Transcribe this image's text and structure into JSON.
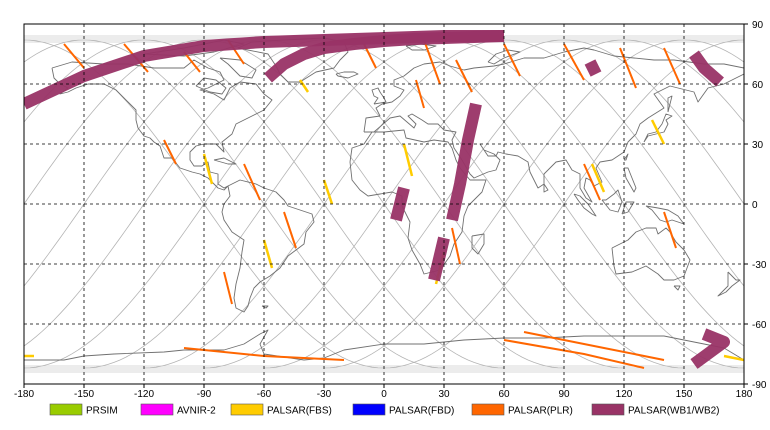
{
  "map": {
    "projection": "equirectangular",
    "lon_range": [
      -180,
      180
    ],
    "lat_range": [
      -90,
      90
    ],
    "grid": "dashed",
    "x_ticks": [
      "-180",
      "-150",
      "-120",
      "-90",
      "-60",
      "-30",
      "0",
      "30",
      "60",
      "90",
      "120",
      "150",
      "180"
    ],
    "y_ticks": [
      "90",
      "60",
      "30",
      "0",
      "-30",
      "-60",
      "-90"
    ]
  },
  "legend": [
    {
      "label": "PRSIM",
      "color": "#99cc00"
    },
    {
      "label": "AVNIR-2",
      "color": "#ff00ff"
    },
    {
      "label": "PALSAR(FBS)",
      "color": "#ffcc00"
    },
    {
      "label": "PALSAR(FBD)",
      "color": "#0000ff"
    },
    {
      "label": "PALSAR(PLR)",
      "color": "#ff6600"
    },
    {
      "label": "PALSAR(WB1/WB2)",
      "color": "#993366"
    }
  ],
  "colors": {
    "coastline": "#707070",
    "orbit": "#b4b4b4",
    "grid": "#000000",
    "background": "#ffffff"
  },
  "swaths": {
    "wb": [
      {
        "name": "wb-arc-north-pacific",
        "lon": [
          -180,
          -150,
          -120,
          -90,
          -60,
          -30,
          0,
          30,
          60
        ],
        "lat": [
          50,
          64,
          74,
          79,
          81,
          82,
          83,
          84,
          84
        ]
      },
      {
        "name": "wb-arc-north-atlantic",
        "lon": [
          -58,
          -50,
          -40,
          -30,
          -15,
          0,
          15,
          30,
          45,
          60
        ],
        "lat": [
          63,
          70,
          75,
          78,
          80,
          81.5,
          82.5,
          83,
          83.5,
          84
        ]
      },
      {
        "name": "wb-siberia",
        "lon": [
          155,
          160,
          168
        ],
        "lat": [
          75,
          68,
          61
        ]
      },
      {
        "name": "wb-taimyr",
        "lon": [
          103,
          106
        ],
        "lat": [
          71,
          65
        ]
      },
      {
        "name": "wb-east-africa",
        "lon": [
          46,
          42,
          38,
          34
        ],
        "lat": [
          50,
          32,
          10,
          -8
        ]
      },
      {
        "name": "wb-central-africa",
        "lon": [
          10,
          6
        ],
        "lat": [
          8,
          -8
        ]
      },
      {
        "name": "wb-south-africa",
        "lon": [
          30,
          25
        ],
        "lat": [
          -17,
          -38
        ]
      },
      {
        "name": "wb-antarctica",
        "lon": [
          160,
          170,
          155
        ],
        "lat": [
          -65,
          -69,
          -80
        ]
      }
    ],
    "plr": [
      {
        "name": "plr-01",
        "lon": [
          -160,
          -150
        ],
        "lat": [
          80,
          68
        ]
      },
      {
        "name": "plr-02",
        "lon": [
          -130,
          -118
        ],
        "lat": [
          80,
          66
        ]
      },
      {
        "name": "plr-03",
        "lon": [
          -100,
          -92
        ],
        "lat": [
          76,
          66
        ]
      },
      {
        "name": "plr-04",
        "lon": [
          -78,
          -70
        ],
        "lat": [
          82,
          70
        ]
      },
      {
        "name": "plr-05",
        "lon": [
          -110,
          -104
        ],
        "lat": [
          32,
          20
        ]
      },
      {
        "name": "plr-06",
        "lon": [
          -70,
          -62
        ],
        "lat": [
          20,
          2
        ]
      },
      {
        "name": "plr-07",
        "lon": [
          -50,
          -44
        ],
        "lat": [
          -4,
          -22
        ]
      },
      {
        "name": "plr-08",
        "lon": [
          -80,
          -76
        ],
        "lat": [
          -34,
          -50
        ]
      },
      {
        "name": "plr-09",
        "lon": [
          -10,
          -4
        ],
        "lat": [
          80,
          68
        ]
      },
      {
        "name": "plr-10",
        "lon": [
          20,
          28
        ],
        "lat": [
          82,
          60
        ]
      },
      {
        "name": "plr-11",
        "lon": [
          36,
          44
        ],
        "lat": [
          72,
          56
        ]
      },
      {
        "name": "plr-12",
        "lon": [
          60,
          68
        ],
        "lat": [
          80,
          64
        ]
      },
      {
        "name": "plr-13",
        "lon": [
          90,
          100
        ],
        "lat": [
          80,
          62
        ]
      },
      {
        "name": "plr-14",
        "lon": [
          118,
          126
        ],
        "lat": [
          78,
          58
        ]
      },
      {
        "name": "plr-15",
        "lon": [
          140,
          148
        ],
        "lat": [
          78,
          60
        ]
      },
      {
        "name": "plr-16",
        "lon": [
          16,
          20
        ],
        "lat": [
          62,
          48
        ]
      },
      {
        "name": "plr-17",
        "lon": [
          34,
          38
        ],
        "lat": [
          -12,
          -30
        ]
      },
      {
        "name": "plr-18",
        "lon": [
          100,
          108
        ],
        "lat": [
          20,
          2
        ]
      },
      {
        "name": "plr-19",
        "lon": [
          140,
          146
        ],
        "lat": [
          -4,
          -22
        ]
      },
      {
        "name": "plr-20",
        "lon": [
          60,
          100,
          130
        ],
        "lat": [
          -68,
          -75,
          -82
        ]
      },
      {
        "name": "plr-21",
        "lon": [
          70,
          110,
          140
        ],
        "lat": [
          -64,
          -72,
          -78
        ]
      },
      {
        "name": "plr-22",
        "lon": [
          -100,
          -60,
          -20
        ],
        "lat": [
          -72,
          -76,
          -78
        ]
      }
    ],
    "fbs": [
      {
        "name": "fbs-01",
        "lon": [
          -42,
          -38
        ],
        "lat": [
          62,
          56
        ]
      },
      {
        "name": "fbs-02",
        "lon": [
          -90,
          -86
        ],
        "lat": [
          25,
          10
        ]
      },
      {
        "name": "fbs-03",
        "lon": [
          -30,
          -26
        ],
        "lat": [
          12,
          0
        ]
      },
      {
        "name": "fbs-04",
        "lon": [
          -60,
          -56
        ],
        "lat": [
          -18,
          -32
        ]
      },
      {
        "name": "fbs-05",
        "lon": [
          10,
          14
        ],
        "lat": [
          30,
          14
        ]
      },
      {
        "name": "fbs-06",
        "lon": [
          30,
          26
        ],
        "lat": [
          -24,
          -40
        ]
      },
      {
        "name": "fbs-07",
        "lon": [
          104,
          110
        ],
        "lat": [
          20,
          6
        ]
      },
      {
        "name": "fbs-08",
        "lon": [
          134,
          140
        ],
        "lat": [
          42,
          30
        ]
      },
      {
        "name": "fbs-09",
        "lon": [
          -180,
          -175
        ],
        "lat": [
          -76,
          -76
        ]
      },
      {
        "name": "fbs-10",
        "lon": [
          170,
          180
        ],
        "lat": [
          -76,
          -78
        ]
      }
    ]
  }
}
